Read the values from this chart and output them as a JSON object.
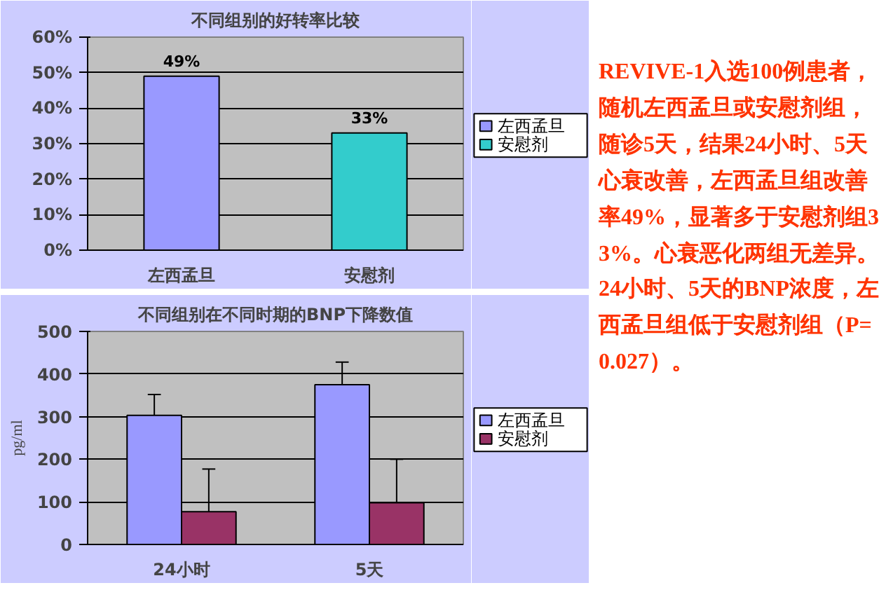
{
  "chart_data": [
    {
      "type": "bar",
      "title": "不同组别的好转率比较",
      "categories": [
        "左西孟旦",
        "安慰剂"
      ],
      "series": [
        {
          "name": "左西孟旦",
          "color": "#9999ff",
          "values": [
            49,
            null
          ],
          "value_labels": [
            "49%",
            null
          ]
        },
        {
          "name": "安慰剂",
          "color": "#33cccc",
          "values": [
            null,
            33
          ],
          "value_labels": [
            null,
            "33%"
          ]
        }
      ],
      "ylim": [
        0,
        60
      ],
      "yticks": [
        {
          "value": 0,
          "label": "0%"
        },
        {
          "value": 10,
          "label": "10%"
        },
        {
          "value": 20,
          "label": "20%"
        },
        {
          "value": 30,
          "label": "30%"
        },
        {
          "value": 40,
          "label": "40%"
        },
        {
          "value": 50,
          "label": "50%"
        },
        {
          "value": 60,
          "label": "60%"
        }
      ],
      "grid": "y",
      "legend": "right"
    },
    {
      "type": "bar",
      "title": "不同组别在不同时期的BNP下降数值",
      "ylabel": "pg/ml",
      "categories": [
        "24小时",
        "5天"
      ],
      "series": [
        {
          "name": "左西孟旦",
          "color": "#9999ff",
          "values": [
            303,
            375
          ],
          "errors": [
            [
              303,
              352
            ],
            [
              375,
              428
            ]
          ]
        },
        {
          "name": "安慰剂",
          "color": "#993366",
          "values": [
            77,
            98
          ],
          "errors": [
            [
              77,
              177
            ],
            [
              98,
              200
            ]
          ]
        }
      ],
      "ylim": [
        0,
        500
      ],
      "yticks": [
        0,
        100,
        200,
        300,
        400,
        500
      ],
      "grid": "y",
      "legend": "right"
    },
    {
      "type": "other",
      "annotations": [
        "REVIVE-1入选100例患者，随机左西孟旦或安慰剂组，随诊5天，结果24小时、5天心衰改善，左西孟旦组改善率49%，显著多于安慰剂组33%。心衰恶化两组无差异。24小时、5天的BNP浓度，左西孟旦组低于安慰剂组（P=0.027）。"
      ]
    }
  ]
}
